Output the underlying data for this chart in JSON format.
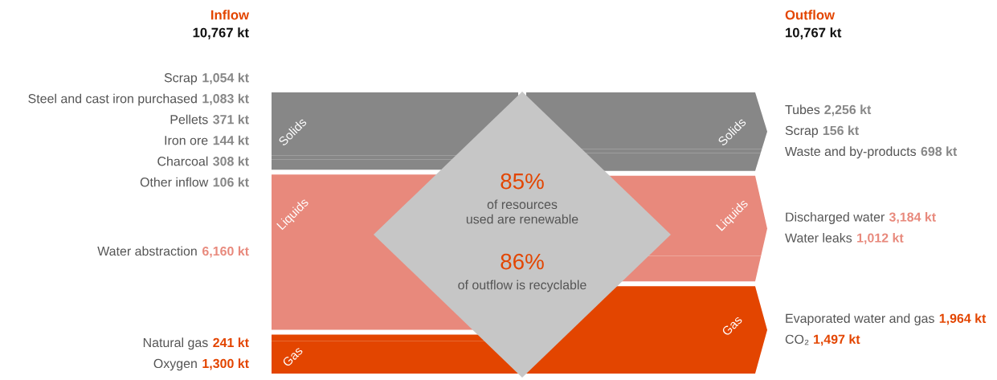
{
  "chart_data": [
    {
      "type": "other",
      "title": "Inflow",
      "subtitle": "10,767 kt",
      "categories": [
        "Scrap",
        "Steel and cast iron purchased",
        "Pellets",
        "Iron ore",
        "Charcoal",
        "Other inflow",
        "Water abstraction",
        "Natural gas",
        "Oxygen"
      ],
      "values": [
        1054,
        1083,
        371,
        144,
        308,
        106,
        6160,
        241,
        1300
      ],
      "value_labels": [
        "1,054 kt",
        "1,083 kt",
        "371 kt",
        "144 kt",
        "308 kt",
        "106 kt",
        "6,160 kt",
        "241 kt",
        "1,300 kt"
      ],
      "colors": [
        "#878787",
        "#878787",
        "#878787",
        "#878787",
        "#878787",
        "#878787",
        "#e8897c",
        "#e34500",
        "#e34500"
      ],
      "annotations": [
        "Solids",
        "Liquids",
        "Gas"
      ]
    },
    {
      "type": "other",
      "title": "Outflow",
      "subtitle": "10,767 kt",
      "categories": [
        "Tubes",
        "Scrap",
        "Waste and by-products",
        "Discharged water",
        "Water leaks",
        "Evaporated water and gas",
        "CO₂"
      ],
      "values": [
        2256,
        156,
        698,
        3184,
        1012,
        1964,
        1497
      ],
      "value_labels": [
        "2,256 kt",
        "156 kt",
        "698 kt",
        "3,184 kt",
        "1,012 kt",
        "1,964 kt",
        "1,497 kt"
      ],
      "colors": [
        "#878787",
        "#878787",
        "#878787",
        "#e8897c",
        "#e8897c",
        "#e34500",
        "#e34500"
      ],
      "annotations": [
        "Solids",
        "Liquids",
        "Gas"
      ]
    },
    {
      "type": "other",
      "annotations": [
        "85%",
        "of resources\nused are renewable",
        "86%",
        "of outflow is recyclable"
      ]
    }
  ]
}
